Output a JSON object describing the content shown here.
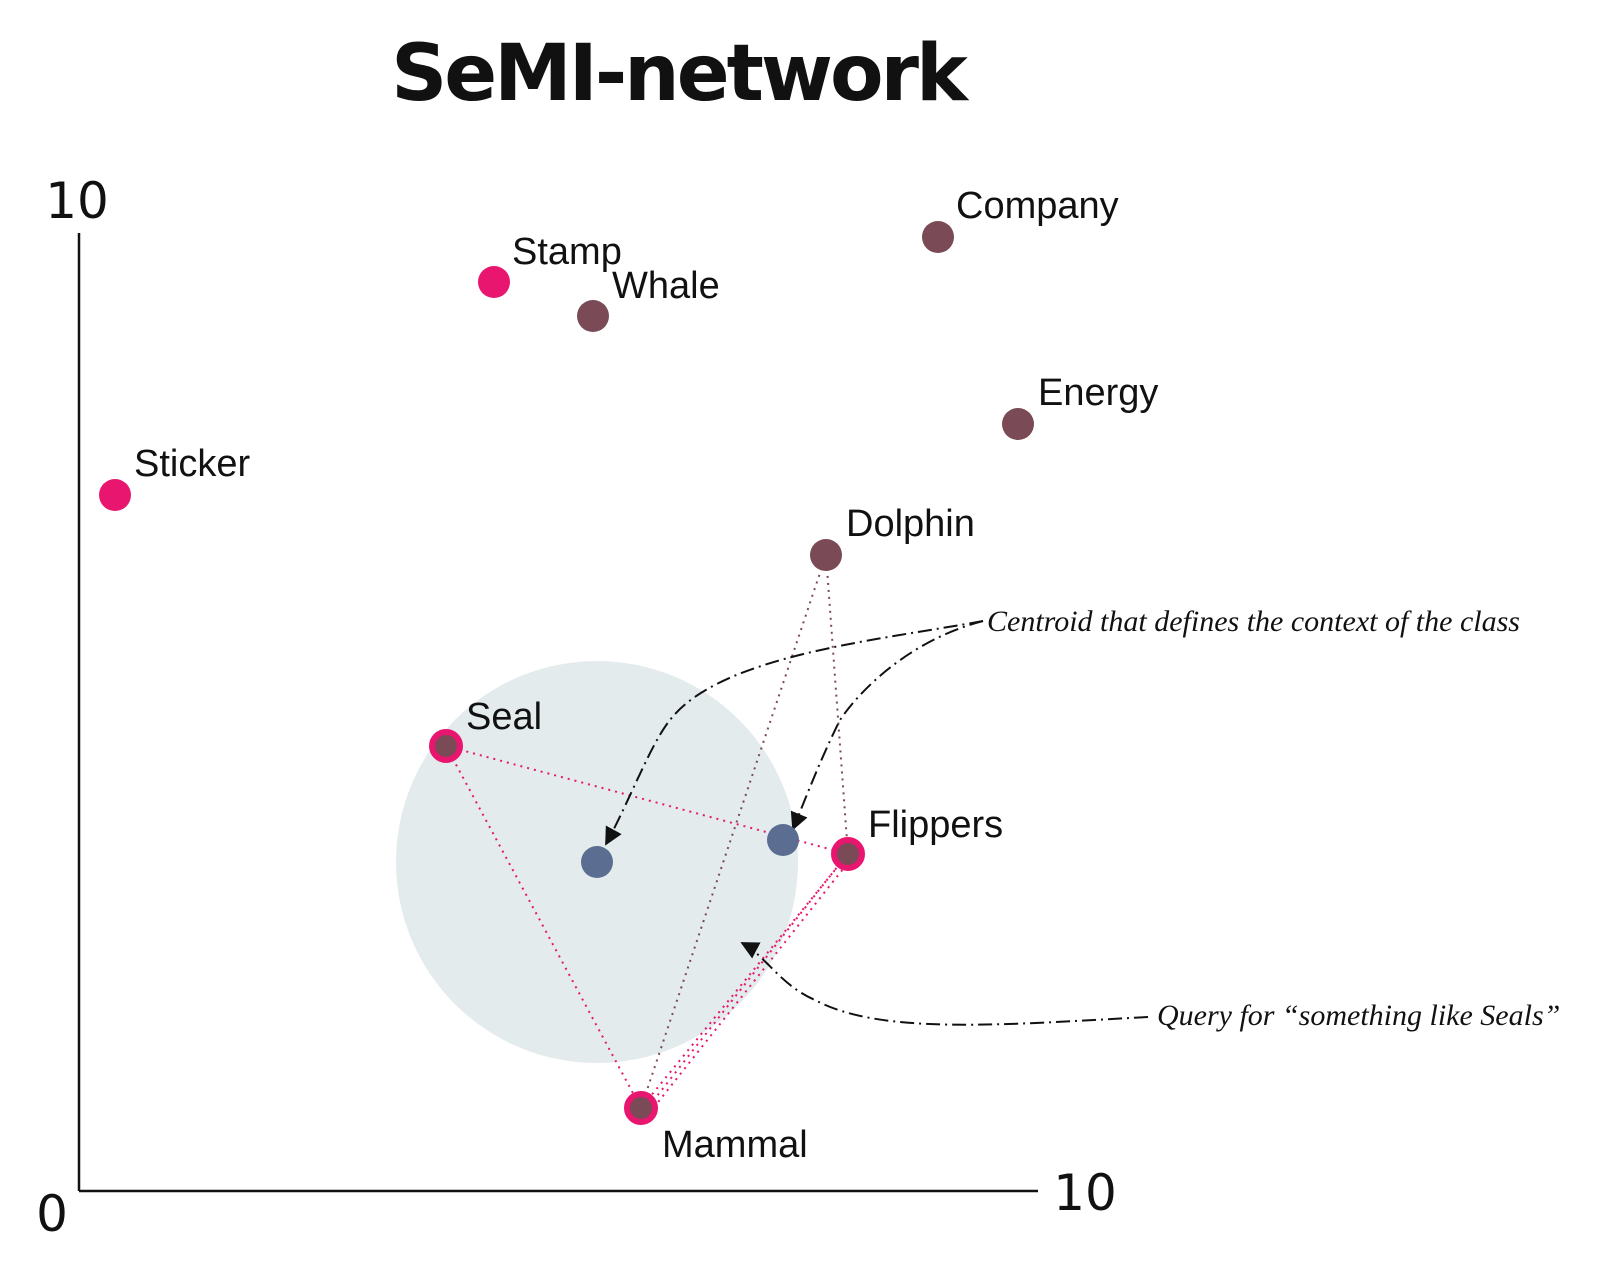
{
  "title": "SeMI-network",
  "axes": {
    "origin_label": "0",
    "x_max_label": "10",
    "y_max_label": "10"
  },
  "colors": {
    "pink": "#e8166e",
    "mauve": "#7a4a56",
    "blue": "#5b6e92",
    "circle_fill": "#e3ebed",
    "axis": "#111111"
  },
  "words": {
    "stamp": "Stamp",
    "whale": "Whale",
    "company": "Company",
    "energy": "Energy",
    "sticker": "Sticker",
    "dolphin": "Dolphin",
    "seal": "Seal",
    "flippers": "Flippers",
    "mammal": "Mammal"
  },
  "annotations": {
    "centroid": "Centroid that defines the context of the class",
    "query": "Query for “something like Seals”"
  }
}
